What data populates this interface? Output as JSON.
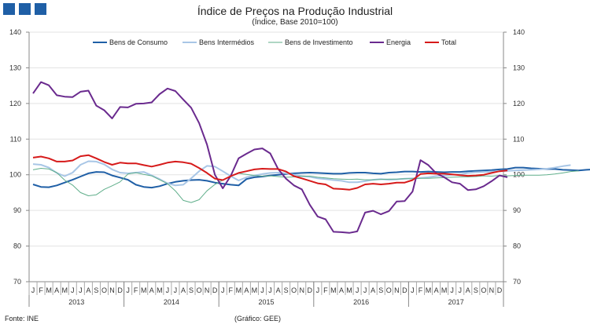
{
  "header": {
    "title": "Índice de Preços na Produção Industrial",
    "subtitle": "(Índice, Base 2010=100)",
    "brand_color": "#1f5fa6"
  },
  "footer": {
    "source": "Fonte: INE",
    "credit": "(Gráfico: GEE)"
  },
  "chart_data": {
    "type": "line",
    "title": "Índice de Preços na Produção Industrial",
    "subtitle": "(Índice, Base 2010=100)",
    "ylim": [
      70,
      140
    ],
    "yticks": [
      70,
      80,
      90,
      100,
      110,
      120,
      130,
      140
    ],
    "month_labels": [
      "J",
      "F",
      "M",
      "A",
      "M",
      "J",
      "J",
      "A",
      "S",
      "O",
      "N",
      "D",
      "J",
      "F",
      "M",
      "A",
      "M",
      "J",
      "J",
      "A",
      "S",
      "O",
      "N",
      "D",
      "J",
      "F",
      "M",
      "A",
      "M",
      "J",
      "J",
      "A",
      "S",
      "O",
      "N",
      "D",
      "J",
      "F",
      "M",
      "A",
      "M",
      "J",
      "J",
      "A",
      "S",
      "O",
      "N",
      "D",
      "J",
      "F",
      "M",
      "A",
      "M",
      "J",
      "J",
      "A",
      "S",
      "O",
      "N",
      "D"
    ],
    "years": [
      "2013",
      "2014",
      "2015",
      "2016",
      "2017"
    ],
    "grid": "horizontal",
    "legend_position": "top",
    "series": [
      {
        "name": "Bens de Consumo",
        "color": "#1f5fa6",
        "values": [
          97.3,
          96.6,
          96.5,
          97.0,
          97.8,
          98.6,
          99.5,
          100.4,
          100.8,
          100.7,
          99.8,
          99.2,
          98.6,
          97.2,
          96.6,
          96.4,
          96.8,
          97.5,
          98.0,
          98.3,
          98.5,
          98.6,
          98.3,
          97.8,
          97.5,
          97.2,
          97.0,
          98.8,
          99.3,
          99.5,
          99.8,
          100.0,
          100.2,
          100.4,
          100.5,
          100.6,
          100.5,
          100.4,
          100.3,
          100.3,
          100.5,
          100.6,
          100.6,
          100.4,
          100.3,
          100.6,
          100.7,
          100.9,
          100.9,
          100.8,
          100.9,
          100.8,
          100.7,
          100.8,
          100.8,
          101.0,
          101.1,
          101.2,
          101.3,
          101.5,
          101.6,
          102.0,
          102.0,
          101.8,
          101.7,
          101.6,
          101.6,
          101.4,
          101.3,
          101.2,
          101.4,
          101.5
        ]
      },
      {
        "name": "Bens Intermédios",
        "color": "#a8c6e6",
        "values": [
          103.0,
          102.8,
          102.0,
          100.5,
          99.6,
          100.6,
          102.8,
          103.8,
          103.7,
          102.9,
          101.5,
          100.6,
          100.4,
          100.6,
          100.8,
          99.8,
          98.8,
          97.6,
          97.0,
          97.2,
          99.0,
          101.0,
          102.5,
          102.3,
          101.0,
          99.6,
          98.4,
          99.3,
          99.8,
          100.2,
          100.5,
          100.6,
          100.4,
          100.0,
          99.6,
          99.4,
          99.0,
          98.8,
          98.5,
          98.3,
          97.9,
          97.9,
          98.2,
          98.6,
          98.8,
          98.6,
          98.7,
          98.9,
          99.0,
          99.1,
          99.3,
          99.6,
          99.8,
          100.0,
          100.1,
          100.5,
          100.7,
          100.8,
          100.9,
          101.0,
          101.1,
          101.2,
          101.3,
          101.4,
          101.5,
          101.7,
          102.0,
          102.4,
          102.7
        ]
      },
      {
        "name": "Bens de Investimento",
        "color": "#5fae8a",
        "values": [
          101.4,
          101.8,
          101.6,
          100.6,
          98.5,
          97.1,
          95.0,
          94.1,
          94.4,
          95.9,
          96.9,
          98.0,
          100.2,
          100.6,
          100.1,
          99.7,
          98.6,
          97.5,
          95.5,
          92.8,
          92.2,
          93.0,
          95.5,
          97.3,
          98.5,
          99.7,
          100.4,
          100.1,
          99.8,
          99.6,
          99.7,
          99.5,
          99.3,
          99.4,
          99.6,
          99.6,
          99.3,
          99.1,
          98.9,
          98.8,
          98.7,
          98.8,
          98.6,
          98.6,
          98.7,
          98.8,
          98.8,
          98.9,
          98.9,
          99.0,
          99.0,
          99.1,
          99.2,
          99.3,
          99.4,
          99.4,
          99.5,
          99.7,
          99.6,
          99.8,
          99.7,
          99.8,
          99.9,
          99.9,
          99.9,
          100.0,
          100.2,
          100.5,
          100.9,
          101.1
        ]
      },
      {
        "name": "Energia",
        "color": "#6a2a8e",
        "values": [
          122.8,
          126.0,
          125.1,
          122.3,
          121.9,
          121.8,
          123.3,
          123.6,
          119.4,
          118.1,
          115.8,
          119.0,
          118.9,
          119.9,
          120.0,
          120.3,
          122.6,
          124.2,
          123.5,
          121.1,
          118.8,
          114.5,
          108.5,
          100.0,
          96.2,
          99.7,
          104.6,
          105.9,
          107.1,
          107.4,
          106.0,
          101.6,
          98.9,
          97.0,
          95.9,
          91.6,
          88.3,
          87.5,
          84.0,
          83.9,
          83.7,
          84.1,
          89.4,
          89.9,
          88.9,
          89.8,
          92.5,
          92.6,
          95.3,
          104.1,
          102.7,
          100.4,
          99.3,
          97.9,
          97.5,
          95.7,
          95.9,
          96.8,
          98.2,
          99.8,
          99.3
        ]
      },
      {
        "name": "Total",
        "color": "#d61a1a",
        "values": [
          104.8,
          105.1,
          104.6,
          103.7,
          103.7,
          104.0,
          105.2,
          105.5,
          104.6,
          103.6,
          102.8,
          103.4,
          103.2,
          103.2,
          102.7,
          102.3,
          102.8,
          103.4,
          103.7,
          103.5,
          103.1,
          101.9,
          100.5,
          98.9,
          98.5,
          99.6,
          100.5,
          101.0,
          101.5,
          101.7,
          101.6,
          101.6,
          100.9,
          99.6,
          99.0,
          98.3,
          97.6,
          97.3,
          96.1,
          96.0,
          95.8,
          96.3,
          97.3,
          97.5,
          97.3,
          97.5,
          97.8,
          97.8,
          98.5,
          100.2,
          100.4,
          100.3,
          100.3,
          100.1,
          99.9,
          99.7,
          99.8,
          100.0,
          100.5,
          101.0,
          101.2
        ]
      }
    ]
  }
}
